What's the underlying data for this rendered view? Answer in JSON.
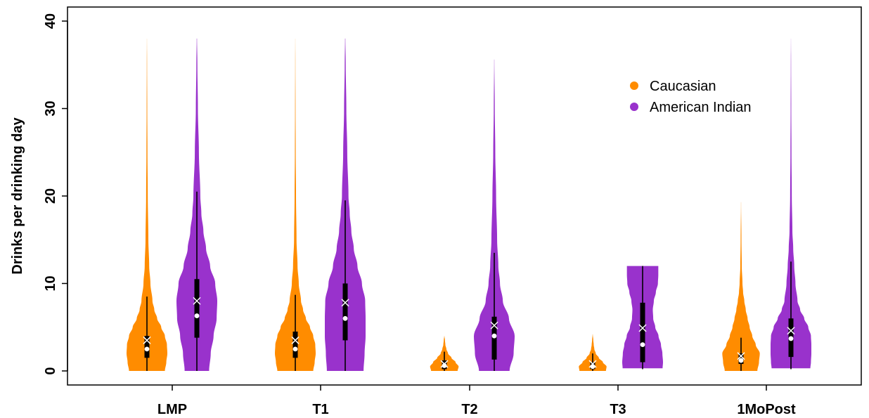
{
  "chart_data": {
    "type": "violin",
    "title": "",
    "xlabel": "",
    "ylabel": "Drinks per drinking day",
    "ylim": [
      -1.5,
      41
    ],
    "yticks": [
      0,
      10,
      20,
      30,
      40
    ],
    "categories": [
      "LMP",
      "T1",
      "T2",
      "T3",
      "1MoPost"
    ],
    "legend": {
      "placement": "top-right"
    },
    "series": [
      {
        "name": "Caucasian",
        "color": "#FF8C00",
        "groups": [
          {
            "min": 0,
            "q1": 1.5,
            "median": 2.5,
            "q3": 4,
            "mean": 3.5,
            "whisker_high": 8.5,
            "max": 38,
            "density": [
              [
                0,
                0.88
              ],
              [
                1,
                0.95
              ],
              [
                2,
                1.0
              ],
              [
                3,
                0.98
              ],
              [
                4,
                0.88
              ],
              [
                5,
                0.7
              ],
              [
                6,
                0.5
              ],
              [
                7,
                0.36
              ],
              [
                8,
                0.27
              ],
              [
                10,
                0.17
              ],
              [
                12,
                0.11
              ],
              [
                15,
                0.07
              ],
              [
                20,
                0.04
              ],
              [
                25,
                0.025
              ],
              [
                30,
                0.015
              ],
              [
                35,
                0.008
              ],
              [
                38,
                0.002
              ]
            ]
          },
          {
            "min": 0,
            "q1": 1.5,
            "median": 2.5,
            "q3": 4.5,
            "mean": 3.5,
            "whisker_high": 8.7,
            "max": 38,
            "density": [
              [
                0,
                0.88
              ],
              [
                1,
                0.95
              ],
              [
                2,
                1.0
              ],
              [
                3,
                0.98
              ],
              [
                4,
                0.88
              ],
              [
                5,
                0.72
              ],
              [
                6,
                0.52
              ],
              [
                7,
                0.38
              ],
              [
                8,
                0.28
              ],
              [
                10,
                0.17
              ],
              [
                12,
                0.11
              ],
              [
                15,
                0.06
              ],
              [
                20,
                0.035
              ],
              [
                25,
                0.02
              ],
              [
                30,
                0.012
              ],
              [
                35,
                0.006
              ],
              [
                38,
                0.002
              ]
            ]
          },
          {
            "min": 0,
            "q1": 0.2,
            "median": 0.6,
            "q3": 1.2,
            "mean": 0.8,
            "whisker_high": 2.2,
            "max": 4,
            "density": [
              [
                0,
                0.65
              ],
              [
                0.5,
                0.7
              ],
              [
                1,
                0.55
              ],
              [
                1.5,
                0.35
              ],
              [
                2,
                0.18
              ],
              [
                2.5,
                0.1
              ],
              [
                3,
                0.05
              ],
              [
                3.5,
                0.03
              ],
              [
                4,
                0.005
              ]
            ]
          },
          {
            "min": 0,
            "q1": 0.2,
            "median": 0.5,
            "q3": 1.0,
            "mean": 0.8,
            "whisker_high": 2.0,
            "max": 4.2,
            "density": [
              [
                0,
                0.65
              ],
              [
                0.5,
                0.68
              ],
              [
                1,
                0.5
              ],
              [
                1.5,
                0.3
              ],
              [
                2,
                0.15
              ],
              [
                2.5,
                0.08
              ],
              [
                3,
                0.05
              ],
              [
                3.5,
                0.03
              ],
              [
                4.2,
                0.005
              ]
            ]
          },
          {
            "min": 0,
            "q1": 0.8,
            "median": 1.2,
            "q3": 2.0,
            "mean": 1.7,
            "whisker_high": 3.8,
            "max": 19.3,
            "density": [
              [
                0,
                0.8
              ],
              [
                1,
                0.88
              ],
              [
                2,
                0.92
              ],
              [
                3,
                0.72
              ],
              [
                4,
                0.55
              ],
              [
                5,
                0.42
              ],
              [
                6,
                0.32
              ],
              [
                7,
                0.23
              ],
              [
                8,
                0.16
              ],
              [
                9,
                0.1
              ],
              [
                10,
                0.07
              ],
              [
                12,
                0.035
              ],
              [
                15,
                0.02
              ],
              [
                19.3,
                0.003
              ]
            ]
          }
        ]
      },
      {
        "name": "American Indian",
        "color": "#9932CC",
        "groups": [
          {
            "min": 0,
            "q1": 3.8,
            "median": 6.3,
            "q3": 10.5,
            "mean": 8.0,
            "whisker_high": 20.5,
            "max": 38,
            "density": [
              [
                0,
                0.6
              ],
              [
                2,
                0.68
              ],
              [
                4,
                0.82
              ],
              [
                6,
                0.97
              ],
              [
                8,
                1.0
              ],
              [
                10,
                0.9
              ],
              [
                12,
                0.65
              ],
              [
                14,
                0.45
              ],
              [
                16,
                0.32
              ],
              [
                18,
                0.22
              ],
              [
                20,
                0.17
              ],
              [
                25,
                0.1
              ],
              [
                30,
                0.05
              ],
              [
                35,
                0.025
              ],
              [
                38,
                0.008
              ]
            ]
          },
          {
            "min": 0,
            "q1": 3.5,
            "median": 6.0,
            "q3": 10.0,
            "mean": 7.8,
            "whisker_high": 19.5,
            "max": 38,
            "density": [
              [
                0,
                0.9
              ],
              [
                2,
                0.95
              ],
              [
                4,
                1.0
              ],
              [
                6,
                1.0
              ],
              [
                8,
                0.98
              ],
              [
                10,
                0.82
              ],
              [
                12,
                0.6
              ],
              [
                14,
                0.42
              ],
              [
                16,
                0.3
              ],
              [
                18,
                0.22
              ],
              [
                20,
                0.16
              ],
              [
                25,
                0.1
              ],
              [
                30,
                0.055
              ],
              [
                35,
                0.025
              ],
              [
                38,
                0.008
              ]
            ]
          },
          {
            "min": 0,
            "q1": 1.3,
            "median": 4.0,
            "q3": 6.2,
            "mean": 5.2,
            "whisker_high": 13.5,
            "max": 35.6,
            "density": [
              [
                0,
                0.75
              ],
              [
                2,
                0.95
              ],
              [
                4,
                1.0
              ],
              [
                6,
                0.72
              ],
              [
                8,
                0.42
              ],
              [
                10,
                0.28
              ],
              [
                12,
                0.2
              ],
              [
                15,
                0.14
              ],
              [
                20,
                0.09
              ],
              [
                25,
                0.05
              ],
              [
                30,
                0.025
              ],
              [
                35.6,
                0.005
              ]
            ]
          },
          {
            "min": 0.2,
            "q1": 1.0,
            "median": 3.0,
            "q3": 7.8,
            "mean": 4.9,
            "whisker_high": 12.0,
            "max": 12.0,
            "density": [
              [
                0.3,
                0.98
              ],
              [
                1,
                1.0
              ],
              [
                2,
                0.97
              ],
              [
                3,
                0.9
              ],
              [
                4,
                0.78
              ],
              [
                5,
                0.62
              ],
              [
                6,
                0.52
              ],
              [
                7,
                0.5
              ],
              [
                8,
                0.55
              ],
              [
                9,
                0.65
              ],
              [
                10,
                0.75
              ],
              [
                11,
                0.77
              ],
              [
                12,
                0.77
              ]
            ]
          },
          {
            "min": 0.2,
            "q1": 1.6,
            "median": 3.7,
            "q3": 6.0,
            "mean": 4.6,
            "whisker_high": 12.5,
            "max": 38,
            "density": [
              [
                0.3,
                0.95
              ],
              [
                1,
                0.98
              ],
              [
                2,
                1.0
              ],
              [
                3,
                1.0
              ],
              [
                4,
                0.98
              ],
              [
                5,
                0.85
              ],
              [
                6,
                0.65
              ],
              [
                7,
                0.45
              ],
              [
                8,
                0.32
              ],
              [
                10,
                0.22
              ],
              [
                12,
                0.16
              ],
              [
                14,
                0.11
              ],
              [
                16,
                0.07
              ],
              [
                20,
                0.04
              ],
              [
                25,
                0.025
              ],
              [
                30,
                0.015
              ],
              [
                35,
                0.008
              ],
              [
                38,
                0.002
              ]
            ]
          }
        ]
      }
    ]
  }
}
